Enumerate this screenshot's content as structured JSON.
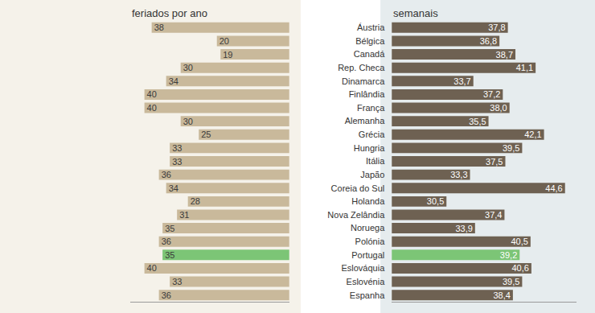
{
  "chart_data": [
    {
      "type": "bar",
      "title": "feriados por ano",
      "orientation": "horizontal",
      "categories": [
        "Áustria",
        "Bélgica",
        "Canadá",
        "Rep. Checa",
        "Dinamarca",
        "Finlândia",
        "França",
        "Alemanha",
        "Grécia",
        "Hungria",
        "Itália",
        "Japão",
        "Coreia do Sul",
        "Holanda",
        "Nova Zelândia",
        "Noruega",
        "Polónia",
        "Portugal",
        "Eslováquia",
        "Eslovénia",
        "Espanha"
      ],
      "values": [
        38,
        20,
        19,
        30,
        34,
        40,
        40,
        30,
        25,
        33,
        33,
        36,
        34,
        28,
        31,
        35,
        36,
        35,
        40,
        33,
        36
      ],
      "colors": [
        "#c9b99b",
        "#c9b99b",
        "#c9b99b",
        "#c9b99b",
        "#c9b99b",
        "#c9b99b",
        "#c9b99b",
        "#c9b99b",
        "#c9b99b",
        "#c9b99b",
        "#c9b99b",
        "#c9b99b",
        "#c9b99b",
        "#c9b99b",
        "#c9b99b",
        "#c9b99b",
        "#c9b99b",
        "#7cc576",
        "#c9b99b",
        "#c9b99b",
        "#c9b99b"
      ],
      "xlim": [
        44,
        0
      ],
      "data_labels": true,
      "tick_labels": false,
      "grid": false
    },
    {
      "type": "bar",
      "title": "semanais",
      "orientation": "horizontal",
      "categories": [
        "Áustria",
        "Bélgica",
        "Canadá",
        "Rep. Checa",
        "Dinamarca",
        "Finlândia",
        "França",
        "Alemanha",
        "Grécia",
        "Hungria",
        "Itália",
        "Japão",
        "Coreia do Sul",
        "Holanda",
        "Nova Zelândia",
        "Noruega",
        "Polónia",
        "Portugal",
        "Eslováquia",
        "Eslovénia",
        "Espanha"
      ],
      "values": [
        37.8,
        36.8,
        38.7,
        41.1,
        33.7,
        37.2,
        38.0,
        35.5,
        42.1,
        39.5,
        37.5,
        33.3,
        44.6,
        30.5,
        37.4,
        33.9,
        40.5,
        39.2,
        40.6,
        39.5,
        38.4
      ],
      "value_labels": [
        "37,8",
        "36,8",
        "38,7",
        "41,1",
        "33,7",
        "37,2",
        "38,0",
        "35,5",
        "42,1",
        "39,5",
        "37,5",
        "33,3",
        "44,6",
        "30,5",
        "37,4",
        "33,9",
        "40,5",
        "39,2",
        "40,6",
        "39,5",
        "38,4"
      ],
      "colors": [
        "#6e6152",
        "#6e6152",
        "#6e6152",
        "#6e6152",
        "#6e6152",
        "#6e6152",
        "#6e6152",
        "#6e6152",
        "#6e6152",
        "#6e6152",
        "#6e6152",
        "#6e6152",
        "#6e6152",
        "#6e6152",
        "#6e6152",
        "#6e6152",
        "#6e6152",
        "#7cc576",
        "#6e6152",
        "#6e6152",
        "#6e6152"
      ],
      "xlim": [
        24,
        46
      ],
      "data_labels": true,
      "tick_labels": "y",
      "grid": false
    }
  ]
}
